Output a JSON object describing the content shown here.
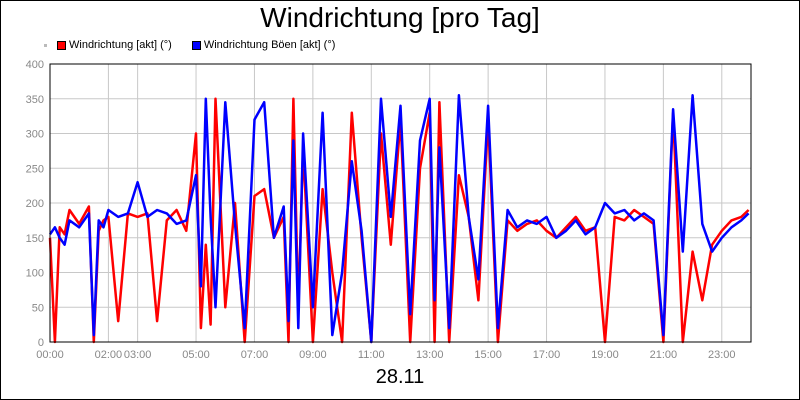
{
  "chart_data": {
    "type": "line",
    "title": "Windrichtung [pro Tag]",
    "date_label": "28.11",
    "ylim": [
      0,
      400
    ],
    "yticks": [
      0,
      50,
      100,
      150,
      200,
      250,
      300,
      350,
      400
    ],
    "xlim": [
      "00:00",
      "24:00"
    ],
    "xticks": [
      "00:00",
      "02:00",
      "03:00",
      "05:00",
      "07:00",
      "09:00",
      "11:00",
      "13:00",
      "15:00",
      "17:00",
      "19:00",
      "21:00",
      "23:00"
    ],
    "grid": true,
    "legend_position": "top-left",
    "series": [
      {
        "name": "Windrichtung [akt] (°)",
        "color": "#ff0000",
        "x": [
          "00:00",
          "00:10",
          "00:20",
          "00:30",
          "00:40",
          "01:00",
          "01:20",
          "01:30",
          "01:40",
          "01:50",
          "02:00",
          "02:20",
          "02:40",
          "03:00",
          "03:20",
          "03:40",
          "04:00",
          "04:20",
          "04:40",
          "05:00",
          "05:10",
          "05:20",
          "05:30",
          "05:40",
          "06:00",
          "06:20",
          "06:40",
          "07:00",
          "07:20",
          "07:40",
          "08:00",
          "08:10",
          "08:20",
          "08:30",
          "08:40",
          "09:00",
          "09:20",
          "09:40",
          "10:00",
          "10:20",
          "10:40",
          "11:00",
          "11:20",
          "11:40",
          "12:00",
          "12:20",
          "12:40",
          "13:00",
          "13:10",
          "13:20",
          "13:40",
          "14:00",
          "14:20",
          "14:40",
          "15:00",
          "15:20",
          "15:40",
          "16:00",
          "16:20",
          "16:40",
          "17:00",
          "17:20",
          "17:40",
          "18:00",
          "18:20",
          "18:40",
          "19:00",
          "19:20",
          "19:40",
          "20:00",
          "20:20",
          "20:40",
          "21:00",
          "21:20",
          "21:40",
          "22:00",
          "22:20",
          "22:40",
          "23:00",
          "23:20",
          "23:40",
          "23:55"
        ],
        "values": [
          150,
          0,
          165,
          155,
          190,
          170,
          195,
          0,
          160,
          175,
          180,
          30,
          185,
          180,
          185,
          30,
          175,
          190,
          160,
          300,
          20,
          140,
          25,
          350,
          50,
          200,
          0,
          210,
          220,
          150,
          180,
          0,
          350,
          45,
          280,
          0,
          220,
          100,
          0,
          330,
          150,
          0,
          300,
          140,
          320,
          0,
          250,
          330,
          0,
          345,
          0,
          240,
          180,
          60,
          320,
          0,
          175,
          160,
          170,
          175,
          160,
          150,
          165,
          180,
          160,
          165,
          0,
          180,
          175,
          190,
          180,
          170,
          0,
          330,
          0,
          130,
          60,
          140,
          160,
          175,
          180,
          190
        ]
      },
      {
        "name": "Windrichtung Böen [akt] (°)",
        "color": "#0000ff",
        "x": [
          "00:00",
          "00:10",
          "00:20",
          "00:30",
          "00:40",
          "01:00",
          "01:20",
          "01:30",
          "01:40",
          "01:50",
          "02:00",
          "02:20",
          "02:40",
          "03:00",
          "03:20",
          "03:40",
          "04:00",
          "04:20",
          "04:40",
          "05:00",
          "05:10",
          "05:20",
          "05:30",
          "05:40",
          "06:00",
          "06:20",
          "06:40",
          "07:00",
          "07:20",
          "07:40",
          "08:00",
          "08:10",
          "08:20",
          "08:30",
          "08:40",
          "09:00",
          "09:20",
          "09:40",
          "10:00",
          "10:20",
          "10:40",
          "11:00",
          "11:20",
          "11:40",
          "12:00",
          "12:20",
          "12:40",
          "13:00",
          "13:10",
          "13:20",
          "13:40",
          "14:00",
          "14:20",
          "14:40",
          "15:00",
          "15:20",
          "15:40",
          "16:00",
          "16:20",
          "16:40",
          "17:00",
          "17:20",
          "17:40",
          "18:00",
          "18:20",
          "18:40",
          "19:00",
          "19:20",
          "19:40",
          "20:00",
          "20:20",
          "20:40",
          "21:00",
          "21:20",
          "21:40",
          "22:00",
          "22:20",
          "22:40",
          "23:00",
          "23:20",
          "23:40",
          "23:55"
        ],
        "values": [
          155,
          165,
          150,
          140,
          175,
          165,
          185,
          10,
          175,
          165,
          190,
          180,
          185,
          230,
          180,
          190,
          185,
          170,
          175,
          240,
          80,
          350,
          180,
          50,
          345,
          170,
          20,
          320,
          345,
          150,
          195,
          30,
          290,
          20,
          300,
          50,
          330,
          10,
          100,
          260,
          160,
          0,
          350,
          180,
          340,
          40,
          290,
          350,
          60,
          280,
          20,
          355,
          180,
          90,
          340,
          20,
          190,
          165,
          175,
          170,
          180,
          150,
          160,
          175,
          155,
          165,
          200,
          185,
          190,
          175,
          185,
          175,
          10,
          335,
          130,
          355,
          170,
          130,
          150,
          165,
          175,
          185
        ]
      }
    ]
  }
}
